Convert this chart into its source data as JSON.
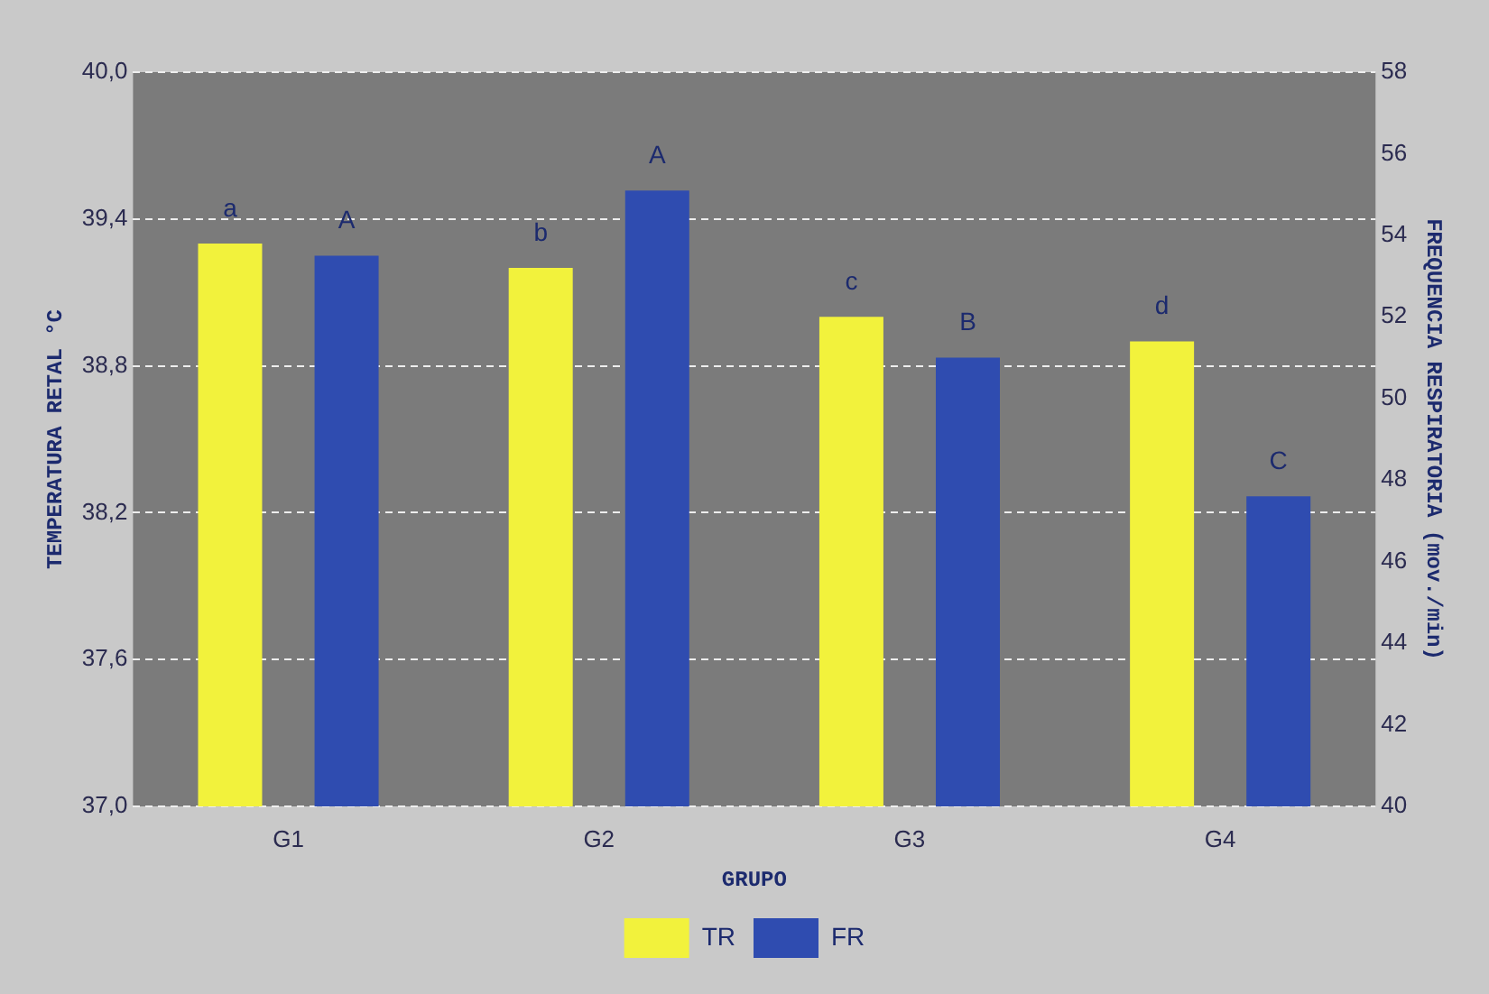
{
  "chart_data": {
    "type": "bar",
    "xlabel": "GRUPO",
    "ylabel": "TEMPERATURA RETAL °C",
    "y2label": "FREQUENCIA RESPIRATORIA (mov./min)",
    "categories": [
      "G1",
      "G2",
      "G3",
      "G4"
    ],
    "series": [
      {
        "name": "TR",
        "color": "#f2f23c",
        "values": [
          39.3,
          39.2,
          39.0,
          38.9
        ]
      },
      {
        "name": "FR",
        "color": "#2f4cb0",
        "axis": "y2",
        "values": [
          53.5,
          55.1,
          51.0,
          47.6
        ]
      }
    ],
    "ylim": [
      37.0,
      40.0
    ],
    "yticks": [
      {
        "value": 37.0,
        "label": "37,0"
      },
      {
        "value": 37.6,
        "label": "37,6"
      },
      {
        "value": 38.2,
        "label": "38,2"
      },
      {
        "value": 38.8,
        "label": "38,8"
      },
      {
        "value": 39.4,
        "label": "39,4"
      },
      {
        "value": 40.0,
        "label": "40,0"
      }
    ],
    "y2lim": [
      40,
      58
    ],
    "y2ticks": [
      40,
      42,
      44,
      46,
      48,
      50,
      52,
      54,
      56,
      58
    ],
    "annotations": [
      "a",
      "A",
      "b",
      "A",
      "c",
      "B",
      "d",
      "C"
    ],
    "grid": "y",
    "legend": "bottom"
  }
}
